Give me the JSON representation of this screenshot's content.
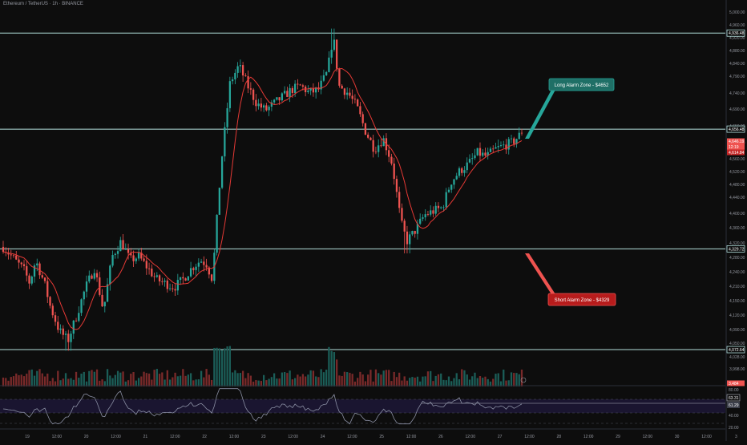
{
  "header": {
    "title": "Ethereum / TetherUS · 1h · BINANCE"
  },
  "colors": {
    "up": "#26a69a",
    "down": "#ef5350",
    "ma": "#e53935",
    "level": "#b2dfdb",
    "bg": "#0d0d0d",
    "rsi": "#8a8fa3"
  },
  "chart_data": [
    {
      "type": "candlestick",
      "title": "Ethereum / TetherUS · 1h · BINANCE",
      "x_ticks": [
        "19",
        "12:00",
        "20",
        "12:00",
        "21",
        "12:00",
        "22",
        "12:00",
        "23",
        "12:00",
        "24",
        "12:00",
        "25",
        "12:00",
        "26",
        "12:00",
        "27",
        "12:00",
        "28",
        "12:00",
        "29",
        "12:00",
        "30",
        "12:00",
        "3"
      ],
      "y_ticks": [
        "5,000.00",
        "4,960.00",
        "4,920.00",
        "4,880.00",
        "4,840.00",
        "4,790.00",
        "4,740.00",
        "4,690.00",
        "4,650.00",
        "4,600.00",
        "4,560.00",
        "4,520.00",
        "4,480.00",
        "4,440.00",
        "4,400.00",
        "4,360.00",
        "4,320.00",
        "4,280.00",
        "4,240.00",
        "4,210.00",
        "4,150.00",
        "4,120.00",
        "4,090.00",
        "4,050.00",
        "4,028.00",
        "3,998.00"
      ],
      "ylim": [
        3998,
        5000
      ],
      "y_scale": "log",
      "levels": [
        {
          "value": 4936.48,
          "label": "4,936.48"
        },
        {
          "value": 4656.48,
          "label": "4,656.48"
        },
        {
          "value": 4329.72,
          "label": "4,329.72"
        },
        {
          "value": 4072.64,
          "label": "4,072.64"
        }
      ],
      "price_tags": {
        "last": "4,646.19",
        "countdown": "12:19",
        "ma": "4,614.84",
        "lower": "3,484"
      },
      "annotations": [
        {
          "text": "Long Alarm Zone - $4652",
          "color": "#26a69a"
        },
        {
          "text": "Short Alarm Zone - $4329",
          "color": "#ef5350"
        }
      ],
      "price_path": [
        {
          "t": 0,
          "p": 4335
        },
        {
          "t": 0.04,
          "p": 4300
        },
        {
          "t": 0.07,
          "p": 4275
        },
        {
          "t": 0.09,
          "p": 4240
        },
        {
          "t": 0.11,
          "p": 4300
        },
        {
          "t": 0.14,
          "p": 4240
        },
        {
          "t": 0.16,
          "p": 4180
        },
        {
          "t": 0.19,
          "p": 4120
        },
        {
          "t": 0.22,
          "p": 4095
        },
        {
          "t": 0.25,
          "p": 4160
        },
        {
          "t": 0.28,
          "p": 4230
        },
        {
          "t": 0.31,
          "p": 4280
        },
        {
          "t": 0.34,
          "p": 4170
        },
        {
          "t": 0.37,
          "p": 4310
        },
        {
          "t": 0.4,
          "p": 4350
        },
        {
          "t": 0.43,
          "p": 4300
        },
        {
          "t": 0.46,
          "p": 4310
        },
        {
          "t": 0.49,
          "p": 4280
        },
        {
          "t": 0.52,
          "p": 4250
        },
        {
          "t": 0.55,
          "p": 4240
        },
        {
          "t": 0.58,
          "p": 4230
        },
        {
          "t": 0.61,
          "p": 4250
        },
        {
          "t": 0.64,
          "p": 4280
        },
        {
          "t": 0.67,
          "p": 4300
        },
        {
          "t": 0.69,
          "p": 4290
        },
        {
          "t": 0.71,
          "p": 4250
        },
        {
          "t": 0.74,
          "p": 4560
        },
        {
          "t": 0.77,
          "p": 4790
        },
        {
          "t": 0.8,
          "p": 4840
        },
        {
          "t": 0.83,
          "p": 4780
        },
        {
          "t": 0.86,
          "p": 4730
        },
        {
          "t": 0.89,
          "p": 4710
        },
        {
          "t": 0.92,
          "p": 4730
        },
        {
          "t": 0.95,
          "p": 4750
        },
        {
          "t": 0.98,
          "p": 4770
        },
        {
          "t": 1.01,
          "p": 4780
        },
        {
          "t": 1.04,
          "p": 4760
        },
        {
          "t": 1.07,
          "p": 4770
        },
        {
          "t": 1.1,
          "p": 4820
        },
        {
          "t": 1.12,
          "p": 4930
        },
        {
          "t": 1.14,
          "p": 4780
        },
        {
          "t": 1.17,
          "p": 4760
        },
        {
          "t": 1.2,
          "p": 4720
        },
        {
          "t": 1.23,
          "p": 4650
        },
        {
          "t": 1.26,
          "p": 4600
        },
        {
          "t": 1.29,
          "p": 4630
        },
        {
          "t": 1.32,
          "p": 4560
        },
        {
          "t": 1.35,
          "p": 4400
        },
        {
          "t": 1.37,
          "p": 4350
        },
        {
          "t": 1.4,
          "p": 4380
        },
        {
          "t": 1.43,
          "p": 4420
        },
        {
          "t": 1.46,
          "p": 4430
        },
        {
          "t": 1.49,
          "p": 4440
        },
        {
          "t": 1.52,
          "p": 4510
        },
        {
          "t": 1.55,
          "p": 4540
        },
        {
          "t": 1.58,
          "p": 4560
        },
        {
          "t": 1.61,
          "p": 4590
        },
        {
          "t": 1.64,
          "p": 4580
        },
        {
          "t": 1.67,
          "p": 4600
        },
        {
          "t": 1.7,
          "p": 4610
        },
        {
          "t": 1.73,
          "p": 4620
        },
        {
          "t": 1.76,
          "p": 4646
        }
      ]
    },
    {
      "type": "line",
      "title": "RSI",
      "y_tags": [
        "63.31",
        "61.29",
        "40.00",
        "20.00",
        "80.00"
      ],
      "ylim": [
        20,
        80
      ]
    }
  ]
}
